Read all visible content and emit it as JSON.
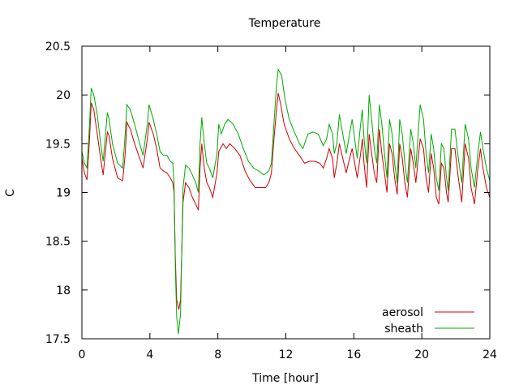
{
  "chart_data": {
    "type": "line",
    "title": "Temperature",
    "xlabel": "Time [hour]",
    "ylabel": "C",
    "xlim": [
      0,
      24
    ],
    "ylim": [
      17.5,
      20.5
    ],
    "xticks": [
      0,
      4,
      8,
      12,
      16,
      20,
      24
    ],
    "yticks": [
      17.5,
      18,
      18.5,
      19,
      19.5,
      20,
      20.5
    ],
    "ytick_labels": [
      "17.5",
      "18",
      "18.5",
      "19",
      "19.5",
      "20",
      "20.5"
    ],
    "grid": false,
    "legend_position": "bottom-right",
    "series": [
      {
        "name": "aerosol",
        "color": "#d10000",
        "points": [
          [
            0,
            19.35
          ],
          [
            0.15,
            19.2
          ],
          [
            0.3,
            19.13
          ],
          [
            0.45,
            19.55
          ],
          [
            0.55,
            19.92
          ],
          [
            0.7,
            19.85
          ],
          [
            0.9,
            19.6
          ],
          [
            1.1,
            19.35
          ],
          [
            1.25,
            19.18
          ],
          [
            1.5,
            19.62
          ],
          [
            1.6,
            19.58
          ],
          [
            1.8,
            19.35
          ],
          [
            2.1,
            19.15
          ],
          [
            2.4,
            19.12
          ],
          [
            2.55,
            19.4
          ],
          [
            2.65,
            19.72
          ],
          [
            2.85,
            19.65
          ],
          [
            3.1,
            19.5
          ],
          [
            3.4,
            19.35
          ],
          [
            3.6,
            19.25
          ],
          [
            3.85,
            19.55
          ],
          [
            3.95,
            19.72
          ],
          [
            4.2,
            19.6
          ],
          [
            4.4,
            19.45
          ],
          [
            4.6,
            19.25
          ],
          [
            4.8,
            19.22
          ],
          [
            5.0,
            19.2
          ],
          [
            5.2,
            19.15
          ],
          [
            5.35,
            19.1
          ],
          [
            5.42,
            19.0
          ],
          [
            5.5,
            18.3
          ],
          [
            5.58,
            17.9
          ],
          [
            5.7,
            17.8
          ],
          [
            5.8,
            17.9
          ],
          [
            5.95,
            18.9
          ],
          [
            6.1,
            19.1
          ],
          [
            6.3,
            19.05
          ],
          [
            6.5,
            18.95
          ],
          [
            6.7,
            18.88
          ],
          [
            6.85,
            18.82
          ],
          [
            6.95,
            19.25
          ],
          [
            7.05,
            19.5
          ],
          [
            7.2,
            19.25
          ],
          [
            7.35,
            19.1
          ],
          [
            7.5,
            19.05
          ],
          [
            7.7,
            18.95
          ],
          [
            7.95,
            19.2
          ],
          [
            8.05,
            19.42
          ],
          [
            8.3,
            19.5
          ],
          [
            8.5,
            19.45
          ],
          [
            8.7,
            19.5
          ],
          [
            9.0,
            19.45
          ],
          [
            9.3,
            19.38
          ],
          [
            9.6,
            19.22
          ],
          [
            9.9,
            19.12
          ],
          [
            10.2,
            19.05
          ],
          [
            10.5,
            19.05
          ],
          [
            10.8,
            19.05
          ],
          [
            11.0,
            19.1
          ],
          [
            11.15,
            19.2
          ],
          [
            11.3,
            19.55
          ],
          [
            11.45,
            19.85
          ],
          [
            11.55,
            20.02
          ],
          [
            11.7,
            19.9
          ],
          [
            11.9,
            19.7
          ],
          [
            12.2,
            19.55
          ],
          [
            12.5,
            19.45
          ],
          [
            12.8,
            19.38
          ],
          [
            13.1,
            19.3
          ],
          [
            13.4,
            19.32
          ],
          [
            13.7,
            19.32
          ],
          [
            14.0,
            19.3
          ],
          [
            14.2,
            19.25
          ],
          [
            14.4,
            19.35
          ],
          [
            14.55,
            19.45
          ],
          [
            14.75,
            19.35
          ],
          [
            14.85,
            19.15
          ],
          [
            15.0,
            19.3
          ],
          [
            15.15,
            19.5
          ],
          [
            15.35,
            19.35
          ],
          [
            15.55,
            19.2
          ],
          [
            15.75,
            19.35
          ],
          [
            15.9,
            19.45
          ],
          [
            16.05,
            19.3
          ],
          [
            16.2,
            19.15
          ],
          [
            16.4,
            19.4
          ],
          [
            16.5,
            19.55
          ],
          [
            16.6,
            19.3
          ],
          [
            16.75,
            19.05
          ],
          [
            16.9,
            19.6
          ],
          [
            17.05,
            19.4
          ],
          [
            17.2,
            19.2
          ],
          [
            17.35,
            19.1
          ],
          [
            17.5,
            19.65
          ],
          [
            17.65,
            19.4
          ],
          [
            17.8,
            19.2
          ],
          [
            17.95,
            19.0
          ],
          [
            18.1,
            19.5
          ],
          [
            18.25,
            19.4
          ],
          [
            18.4,
            19.15
          ],
          [
            18.55,
            18.98
          ],
          [
            18.7,
            19.5
          ],
          [
            18.85,
            19.35
          ],
          [
            19.0,
            19.1
          ],
          [
            19.15,
            18.95
          ],
          [
            19.35,
            19.45
          ],
          [
            19.5,
            19.3
          ],
          [
            19.65,
            19.1
          ],
          [
            19.9,
            19.55
          ],
          [
            20.1,
            19.45
          ],
          [
            20.25,
            19.15
          ],
          [
            20.4,
            19.0
          ],
          [
            20.55,
            19.4
          ],
          [
            20.7,
            19.25
          ],
          [
            20.85,
            18.95
          ],
          [
            21.0,
            18.88
          ],
          [
            21.15,
            19.3
          ],
          [
            21.3,
            19.25
          ],
          [
            21.45,
            19.0
          ],
          [
            21.55,
            18.9
          ],
          [
            21.75,
            19.45
          ],
          [
            21.95,
            19.45
          ],
          [
            22.15,
            19.15
          ],
          [
            22.35,
            18.9
          ],
          [
            22.55,
            19.5
          ],
          [
            22.75,
            19.35
          ],
          [
            22.9,
            19.05
          ],
          [
            23.1,
            18.88
          ],
          [
            23.3,
            19.25
          ],
          [
            23.45,
            19.45
          ],
          [
            23.6,
            19.25
          ],
          [
            23.8,
            19.05
          ],
          [
            24.0,
            18.95
          ]
        ]
      },
      {
        "name": "sheath",
        "color": "#00aa00",
        "points": [
          [
            0,
            19.42
          ],
          [
            0.15,
            19.3
          ],
          [
            0.3,
            19.25
          ],
          [
            0.45,
            19.7
          ],
          [
            0.55,
            20.07
          ],
          [
            0.7,
            20.0
          ],
          [
            0.9,
            19.8
          ],
          [
            1.1,
            19.5
          ],
          [
            1.25,
            19.32
          ],
          [
            1.5,
            19.82
          ],
          [
            1.6,
            19.75
          ],
          [
            1.8,
            19.5
          ],
          [
            2.1,
            19.3
          ],
          [
            2.4,
            19.25
          ],
          [
            2.55,
            19.6
          ],
          [
            2.65,
            19.9
          ],
          [
            2.85,
            19.85
          ],
          [
            3.1,
            19.7
          ],
          [
            3.4,
            19.5
          ],
          [
            3.6,
            19.38
          ],
          [
            3.85,
            19.7
          ],
          [
            3.95,
            19.9
          ],
          [
            4.2,
            19.75
          ],
          [
            4.4,
            19.6
          ],
          [
            4.6,
            19.42
          ],
          [
            4.8,
            19.38
          ],
          [
            5.0,
            19.38
          ],
          [
            5.2,
            19.32
          ],
          [
            5.35,
            19.3
          ],
          [
            5.42,
            19.1
          ],
          [
            5.5,
            18.2
          ],
          [
            5.58,
            17.72
          ],
          [
            5.68,
            17.55
          ],
          [
            5.8,
            17.75
          ],
          [
            5.95,
            19.05
          ],
          [
            6.1,
            19.28
          ],
          [
            6.3,
            19.25
          ],
          [
            6.5,
            19.18
          ],
          [
            6.7,
            19.1
          ],
          [
            6.85,
            19.0
          ],
          [
            6.95,
            19.5
          ],
          [
            7.05,
            19.77
          ],
          [
            7.2,
            19.5
          ],
          [
            7.35,
            19.3
          ],
          [
            7.5,
            19.25
          ],
          [
            7.7,
            19.15
          ],
          [
            7.95,
            19.4
          ],
          [
            8.05,
            19.7
          ],
          [
            8.2,
            19.6
          ],
          [
            8.4,
            19.7
          ],
          [
            8.6,
            19.75
          ],
          [
            8.9,
            19.7
          ],
          [
            9.2,
            19.6
          ],
          [
            9.5,
            19.45
          ],
          [
            9.8,
            19.32
          ],
          [
            10.1,
            19.25
          ],
          [
            10.4,
            19.22
          ],
          [
            10.7,
            19.18
          ],
          [
            11.0,
            19.22
          ],
          [
            11.15,
            19.3
          ],
          [
            11.3,
            19.7
          ],
          [
            11.45,
            20.1
          ],
          [
            11.55,
            20.26
          ],
          [
            11.75,
            20.2
          ],
          [
            11.95,
            19.95
          ],
          [
            12.2,
            19.75
          ],
          [
            12.5,
            19.62
          ],
          [
            12.8,
            19.5
          ],
          [
            13.0,
            19.45
          ],
          [
            13.3,
            19.6
          ],
          [
            13.6,
            19.62
          ],
          [
            13.9,
            19.6
          ],
          [
            14.2,
            19.48
          ],
          [
            14.4,
            19.55
          ],
          [
            14.55,
            19.7
          ],
          [
            14.75,
            19.6
          ],
          [
            14.85,
            19.4
          ],
          [
            15.0,
            19.5
          ],
          [
            15.15,
            19.8
          ],
          [
            15.35,
            19.6
          ],
          [
            15.55,
            19.4
          ],
          [
            15.75,
            19.6
          ],
          [
            15.9,
            19.75
          ],
          [
            16.05,
            19.55
          ],
          [
            16.2,
            19.35
          ],
          [
            16.4,
            19.7
          ],
          [
            16.5,
            19.85
          ],
          [
            16.6,
            19.55
          ],
          [
            16.75,
            19.3
          ],
          [
            16.9,
            20.0
          ],
          [
            17.05,
            19.75
          ],
          [
            17.2,
            19.45
          ],
          [
            17.35,
            19.3
          ],
          [
            17.5,
            19.9
          ],
          [
            17.65,
            19.7
          ],
          [
            17.8,
            19.4
          ],
          [
            17.95,
            19.15
          ],
          [
            18.1,
            19.75
          ],
          [
            18.25,
            19.6
          ],
          [
            18.4,
            19.3
          ],
          [
            18.55,
            19.1
          ],
          [
            18.7,
            19.75
          ],
          [
            18.85,
            19.6
          ],
          [
            19.0,
            19.3
          ],
          [
            19.15,
            19.1
          ],
          [
            19.35,
            19.65
          ],
          [
            19.5,
            19.5
          ],
          [
            19.65,
            19.25
          ],
          [
            19.9,
            19.9
          ],
          [
            20.1,
            19.75
          ],
          [
            20.25,
            19.4
          ],
          [
            20.4,
            19.2
          ],
          [
            20.55,
            19.6
          ],
          [
            20.7,
            19.45
          ],
          [
            20.85,
            19.15
          ],
          [
            21.0,
            19.02
          ],
          [
            21.15,
            19.5
          ],
          [
            21.3,
            19.45
          ],
          [
            21.45,
            19.15
          ],
          [
            21.55,
            19.02
          ],
          [
            21.75,
            19.65
          ],
          [
            21.95,
            19.65
          ],
          [
            22.15,
            19.35
          ],
          [
            22.35,
            19.1
          ],
          [
            22.55,
            19.7
          ],
          [
            22.75,
            19.55
          ],
          [
            22.9,
            19.25
          ],
          [
            23.1,
            19.05
          ],
          [
            23.3,
            19.4
          ],
          [
            23.45,
            19.62
          ],
          [
            23.6,
            19.45
          ],
          [
            23.8,
            19.25
          ],
          [
            24.0,
            19.12
          ]
        ]
      }
    ]
  }
}
